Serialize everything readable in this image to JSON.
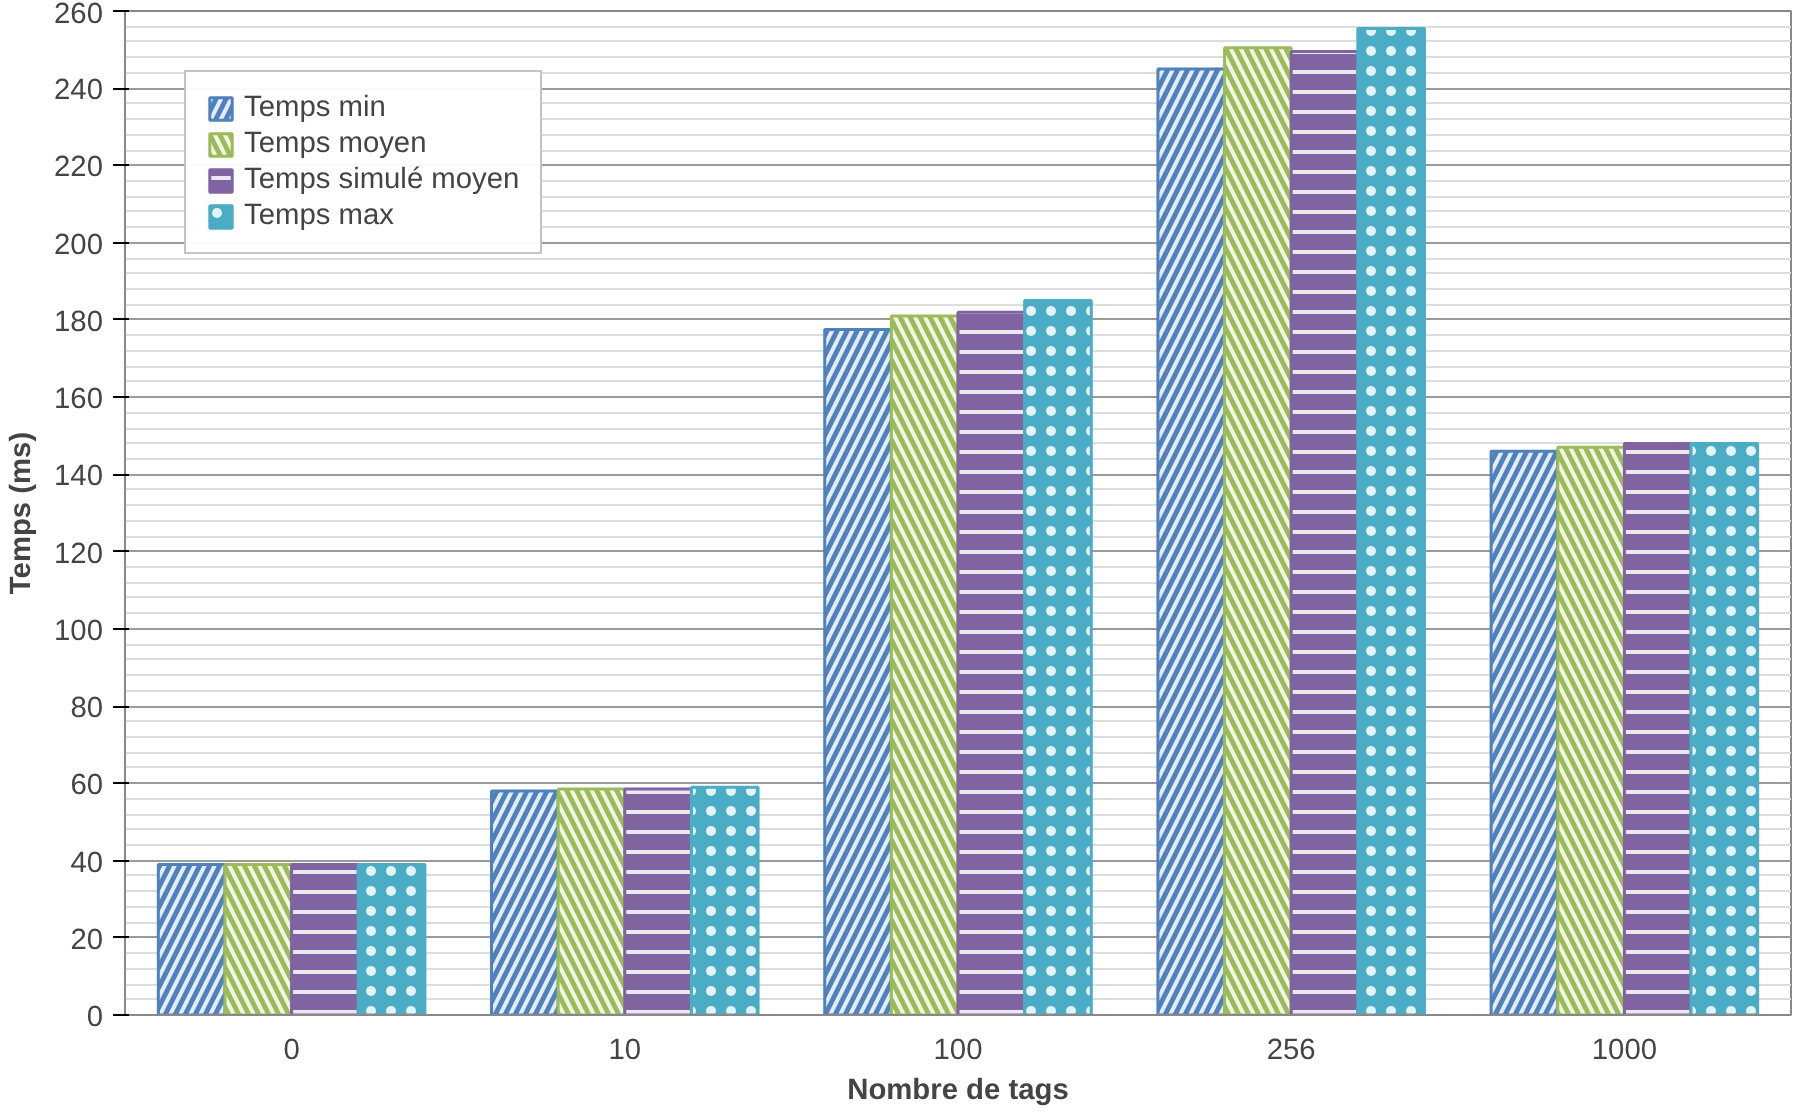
{
  "chart_data": {
    "type": "bar",
    "xlabel": "Nombre de tags",
    "ylabel": "Temps (ms)",
    "categories": [
      "0",
      "10",
      "100",
      "256",
      "1000"
    ],
    "series": [
      {
        "name": "Temps min",
        "color": "#4f81bd",
        "values": [
          39,
          58,
          177.5,
          245,
          146
        ]
      },
      {
        "name": "Temps moyen",
        "color": "#9bbb59",
        "values": [
          39,
          58.5,
          181,
          250.5,
          147
        ]
      },
      {
        "name": "Temps simulé moyen",
        "color": "#8064a2",
        "values": [
          39,
          58.5,
          182,
          249.5,
          148
        ]
      },
      {
        "name": "Temps max",
        "color": "#4bacc6",
        "values": [
          39,
          59,
          185,
          255.5,
          148
        ]
      }
    ],
    "ylim": [
      0,
      260
    ],
    "yticks": [
      0,
      20,
      40,
      60,
      80,
      100,
      120,
      140,
      160,
      180,
      200,
      220,
      240,
      260
    ],
    "grid": "y",
    "legend": "top left"
  }
}
